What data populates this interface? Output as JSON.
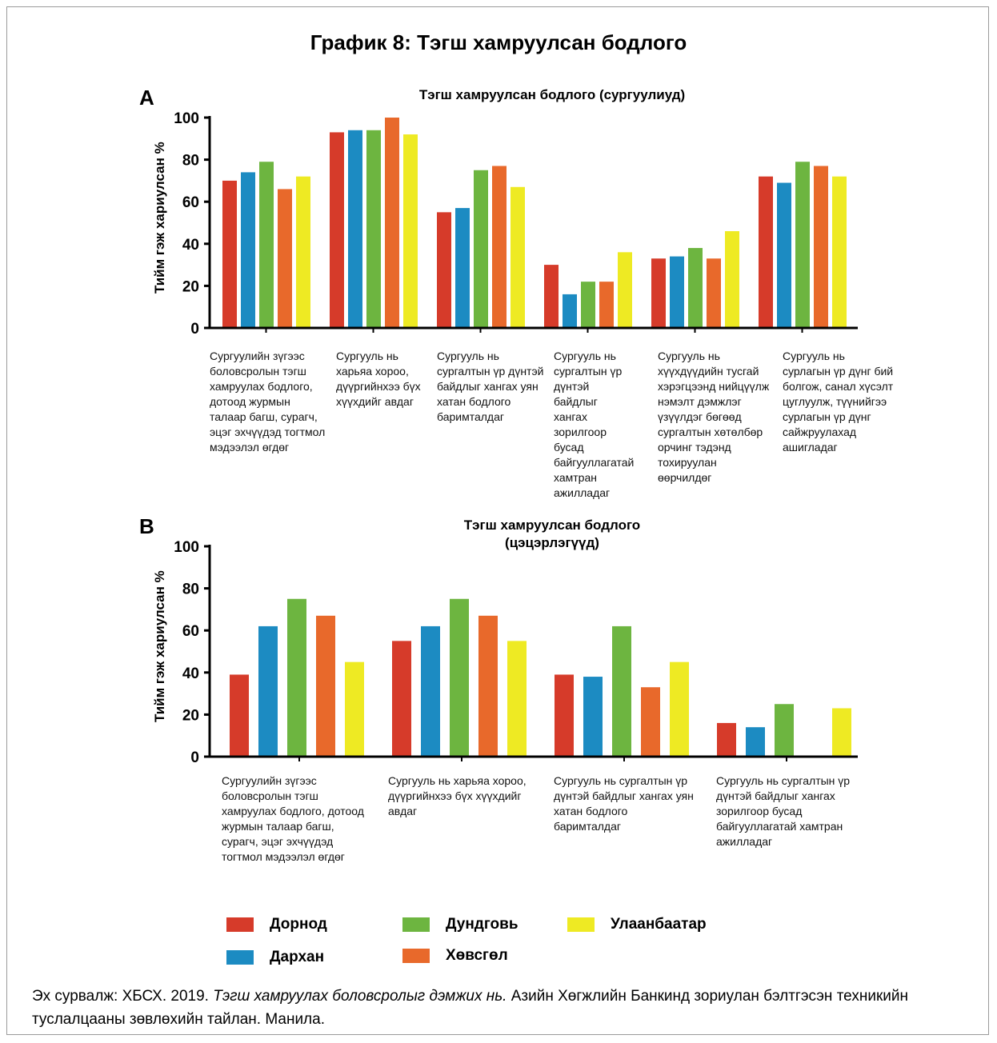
{
  "figure_title": "График 8: Тэгш хамруулсан бодлого",
  "colors": {
    "Дорнод": "#d63b2a",
    "Дархан": "#1c8bc2",
    "Дундговь": "#6db540",
    "Хөвсгөл": "#e8692b",
    "Улаанбаатар": "#eeea23"
  },
  "legend": [
    "Дорнод",
    "Дархан",
    "Дундговь",
    "Хөвсгөл",
    "Улаанбаатар"
  ],
  "panels": [
    {
      "letter": "A",
      "chart_title": "Тэгш хамруулсан бодлого (сургуулиуд)",
      "ylabel": "Тийм гэж хариулсан %"
    },
    {
      "letter": "B",
      "chart_title": "Тэгш хамруулсан бодлого (цэцэрлэгүүд)",
      "ylabel": "Тийм гэж хариулсан %"
    }
  ],
  "chart_data": [
    {
      "type": "bar",
      "title": "Тэгш хамруулсан бодлого (сургуулиуд)",
      "ylabel": "Тийм гэж хариулсан %",
      "ylim": [
        0,
        100
      ],
      "yticks": [
        0,
        20,
        40,
        60,
        80,
        100
      ],
      "categories": [
        "Сургуулийн зүгээс боловсролын тэгш хамруулах бодлого, дотоод журмын талаар багш, сурагч, эцэг эхчүүдэд тогтмол мэдээлэл өгдөг",
        "Сургууль нь харьяа хороо, дүүргийнхээ бүх хүүхдийг авдаг",
        "Сургууль нь сургалтын үр дүнтэй байдлыг хангах уян хатан бодлого баримталдаг",
        "Сургууль нь сургалтын үр дүнтэй байдлыг хангах зорилгоор бусад байгууллагатай хамтран ажилладаг",
        "Сургууль нь хүүхдүүдийн тусгай хэрэгцээнд нийцүүлж нэмэлт дэмжлэг үзүүлдэг бөгөөд сургалтын хөтөлбөр орчинг тэдэнд тохируулан өөрчилдөг",
        "Сургууль нь сурлагын үр дүнг бий болгож, санал хүсэлт цуглуулж, түүнийгээ сурлагын үр дүнг сайжруулахад ашигладаг"
      ],
      "series": [
        {
          "name": "Дорнод",
          "values": [
            70,
            93,
            55,
            30,
            33,
            72
          ]
        },
        {
          "name": "Дархан",
          "values": [
            74,
            94,
            57,
            16,
            34,
            69
          ]
        },
        {
          "name": "Дундговь",
          "values": [
            79,
            94,
            75,
            22,
            38,
            79
          ]
        },
        {
          "name": "Хөвсгөл",
          "values": [
            66,
            100,
            77,
            22,
            33,
            77
          ]
        },
        {
          "name": "Улаанбаатар",
          "values": [
            72,
            92,
            67,
            36,
            46,
            72
          ]
        }
      ]
    },
    {
      "type": "bar",
      "title": "Тэгш хамруулсан бодлого (цэцэрлэгүүд)",
      "ylabel": "Тийм гэж хариулсан %",
      "ylim": [
        0,
        100
      ],
      "yticks": [
        0,
        20,
        40,
        60,
        80,
        100
      ],
      "categories": [
        "Сургуулийн зүгээс боловсролын тэгш хамруулах бодлого, дотоод журмын талаар багш, сурагч, эцэг эхчүүдэд тогтмол мэдээлэл өгдөг",
        "Сургууль нь харьяа хороо, дүүргийнхээ бүх хүүхдийг авдаг",
        "Сургууль нь сургалтын үр дүнтэй байдлыг хангах уян хатан бодлого баримталдаг",
        "Сургууль нь сургалтын үр дүнтэй байдлыг хангах зорилгоор бусад байгууллагатай хамтран ажилладаг"
      ],
      "series": [
        {
          "name": "Дорнод",
          "values": [
            39,
            55,
            39,
            16
          ]
        },
        {
          "name": "Дархан",
          "values": [
            62,
            62,
            38,
            14
          ]
        },
        {
          "name": "Дундговь",
          "values": [
            75,
            75,
            62,
            25
          ]
        },
        {
          "name": "Хөвсгөл",
          "values": [
            67,
            67,
            33,
            0
          ]
        },
        {
          "name": "Улаанбаатар",
          "values": [
            45,
            55,
            45,
            23
          ]
        }
      ]
    }
  ],
  "source": {
    "prefix": "Эх сурвалж: ХБСХ. 2019. ",
    "title": "Тэгш хамруулах боловсролыг дэмжих нь.",
    "suffix": " Азийн Хөгжлийн Банкинд зориулан бэлтгэсэн техникийн туслалцааны зөвлөхийн тайлан. Манила."
  }
}
